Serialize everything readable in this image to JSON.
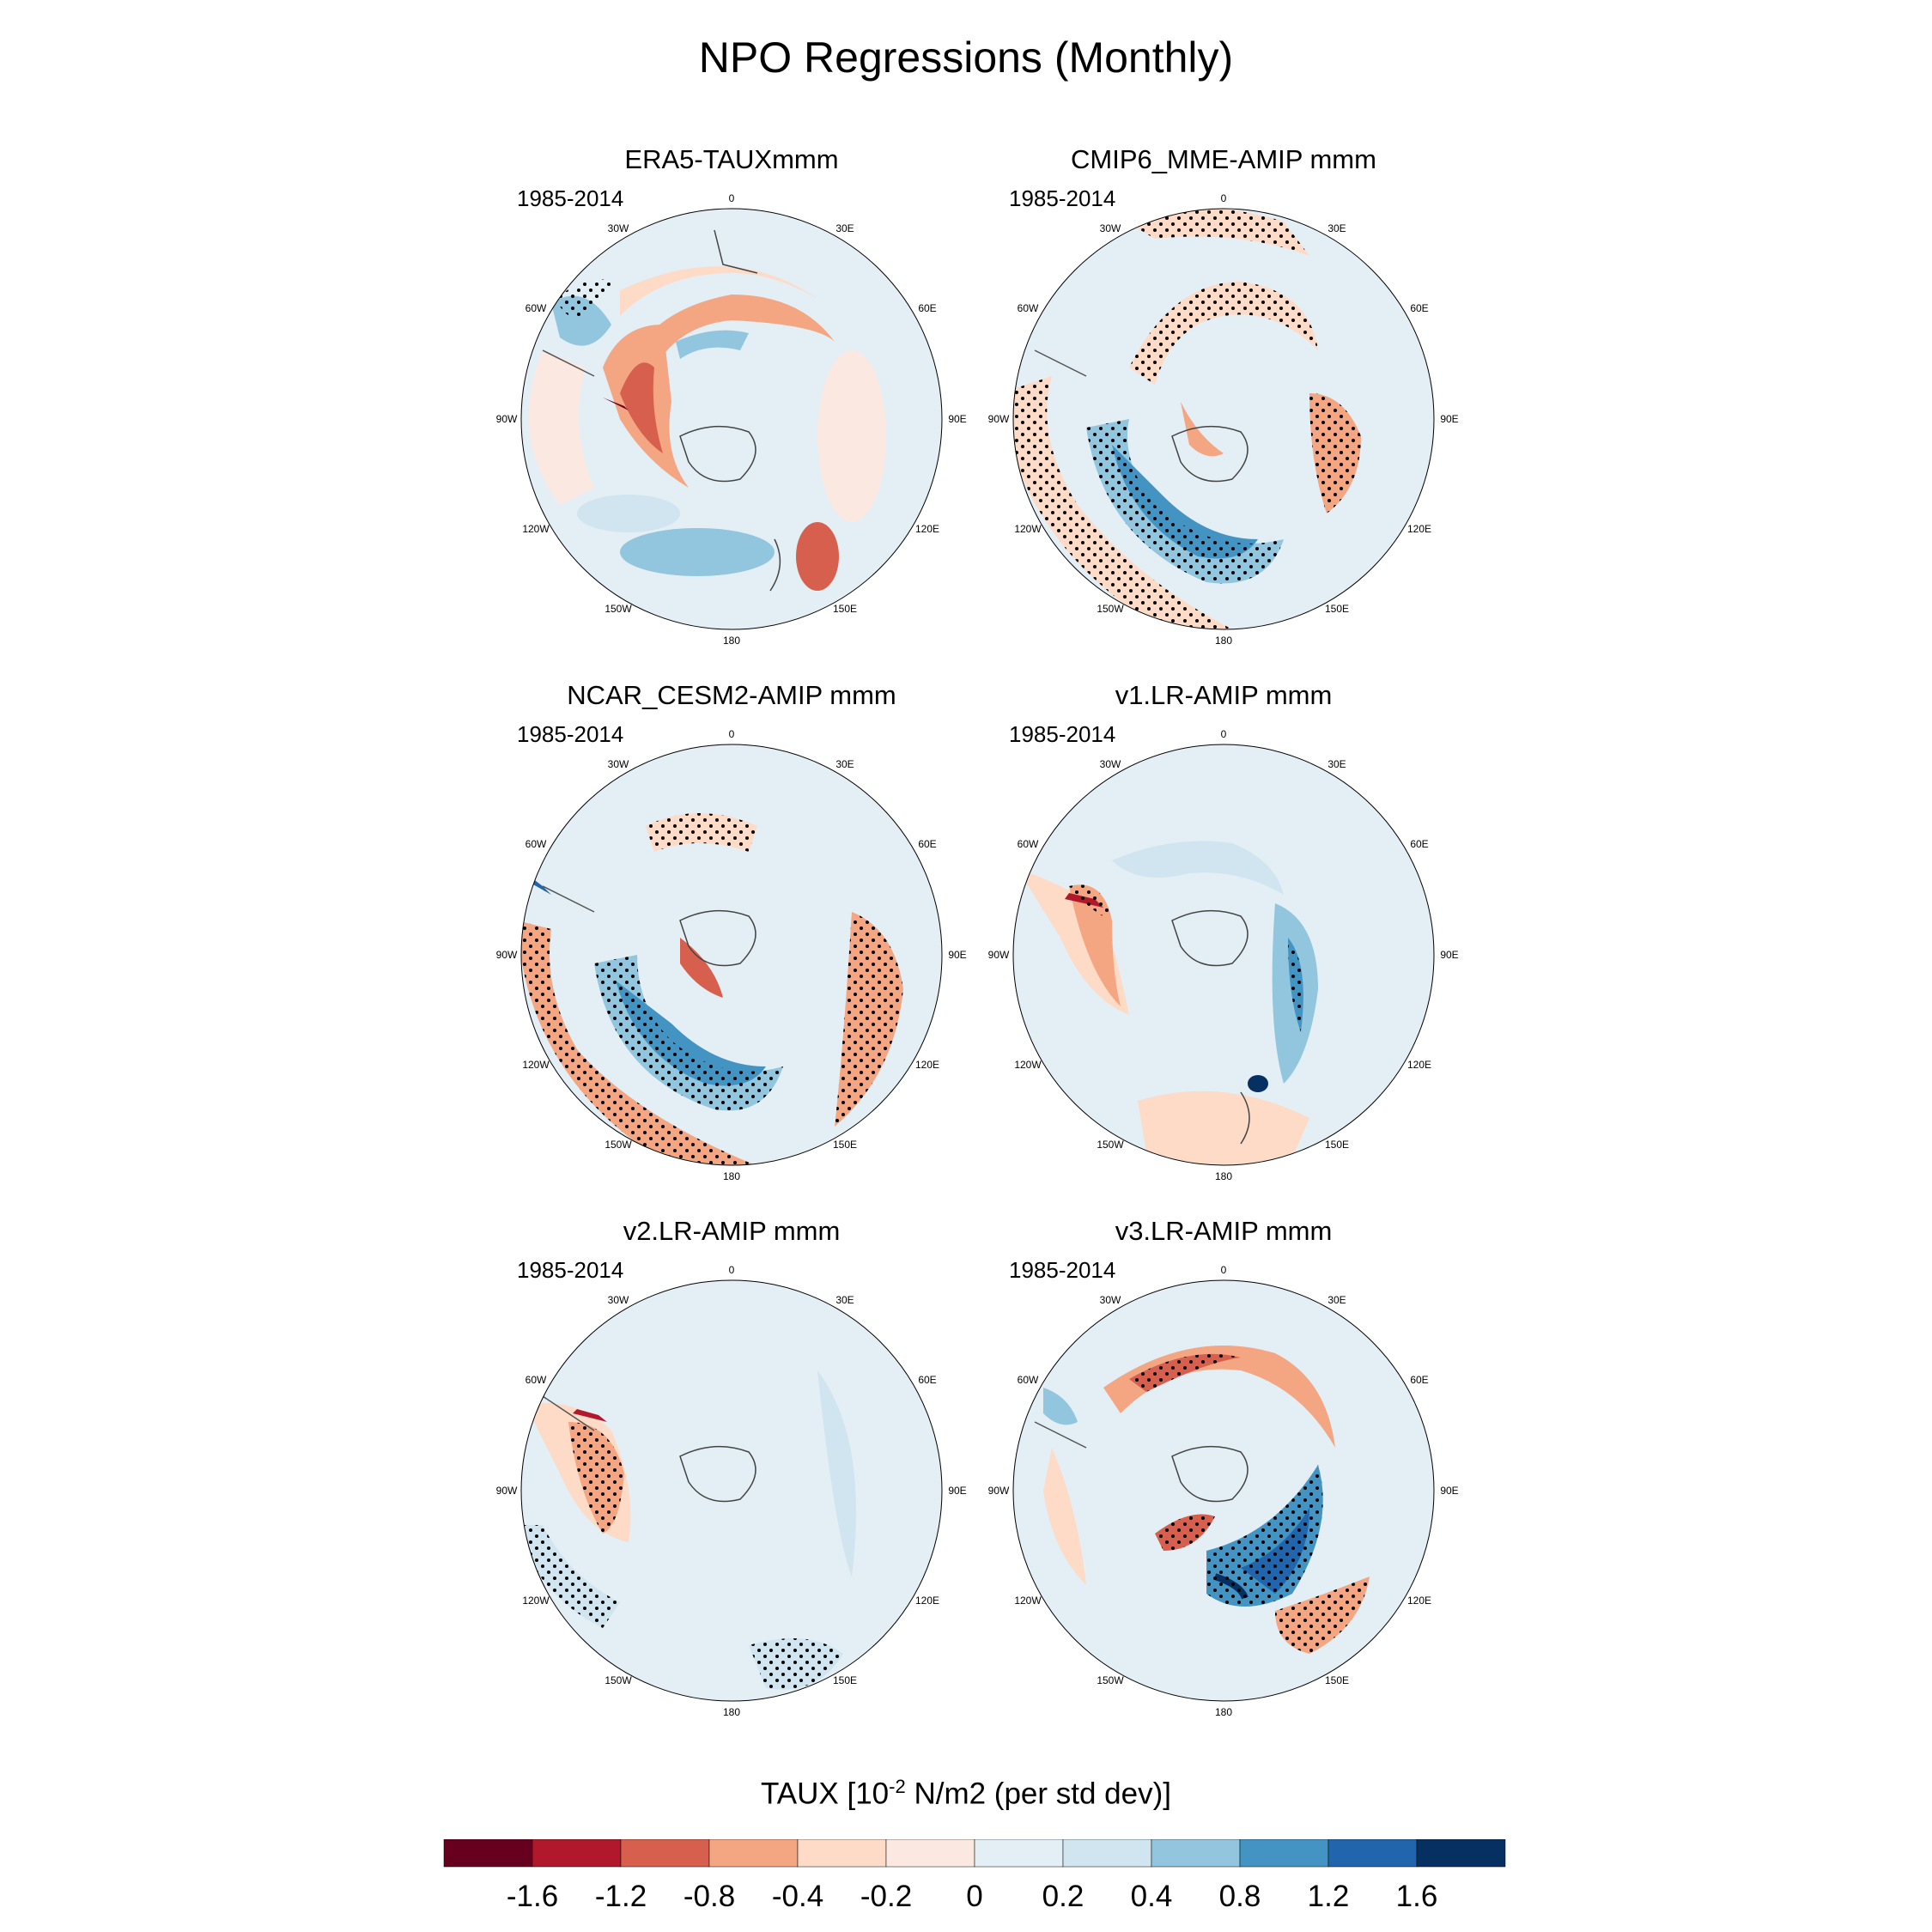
{
  "title": "NPO Regressions (Monthly)",
  "panels": [
    {
      "title": "ERA5-TAUXmmm",
      "period": "1985-2014"
    },
    {
      "title": "CMIP6_MME-AMIP  mmm",
      "period": "1985-2014"
    },
    {
      "title": "NCAR_CESM2-AMIP  mmm",
      "period": "1985-2014"
    },
    {
      "title": "v1.LR-AMIP  mmm",
      "period": "1985-2014"
    },
    {
      "title": "v2.LR-AMIP  mmm",
      "period": "1985-2014"
    },
    {
      "title": "v3.LR-AMIP  mmm",
      "period": "1985-2014"
    }
  ],
  "longitude_labels": [
    "0",
    "30E",
    "60E",
    "90E",
    "120E",
    "150E",
    "180",
    "150W",
    "120W",
    "90W",
    "60W",
    "30W"
  ],
  "colorbar": {
    "title_prefix": "TAUX [10",
    "title_exponent": "-2",
    "title_suffix": " N/m2 (per std dev)]",
    "labels": [
      "-1.6",
      "-1.2",
      "-0.8",
      "-0.4",
      "-0.2",
      "0",
      "0.2",
      "0.4",
      "0.8",
      "1.2",
      "1.6"
    ],
    "colors": [
      "#67001f",
      "#b2182b",
      "#d6604d",
      "#f4a582",
      "#fddbc7",
      "#fbe9e1",
      "#e3eef5",
      "#d1e5f0",
      "#92c5de",
      "#4393c3",
      "#2166ac",
      "#053061"
    ]
  }
}
